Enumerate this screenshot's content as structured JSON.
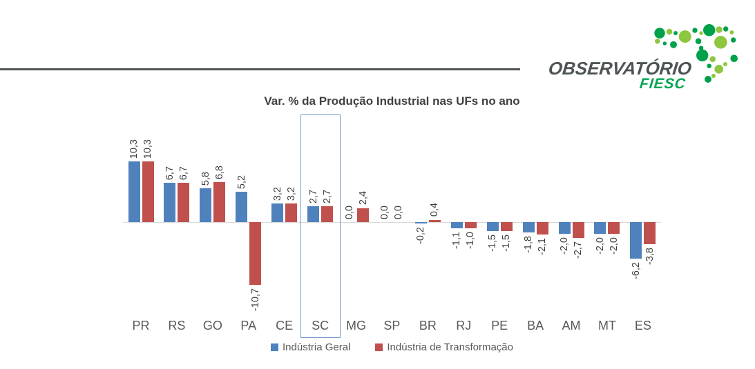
{
  "logo": {
    "primary": "OBSERVATÓRIO",
    "secondary": "FIESC",
    "primary_color": "#4d5456",
    "secondary_color": "#00a651",
    "rule_color": "#4d5456",
    "dot_color_dark": "#00a14b",
    "dot_color_light": "#8dc63f"
  },
  "chart_data": {
    "type": "bar",
    "title": "Var. % da Produção Industrial nas UFs no ano",
    "categories": [
      "PR",
      "RS",
      "GO",
      "PA",
      "CE",
      "SC",
      "MG",
      "SP",
      "BR",
      "RJ",
      "PE",
      "BA",
      "AM",
      "MT",
      "ES"
    ],
    "series": [
      {
        "name": "Indústria Geral",
        "color": "#4f81bd",
        "values": [
          10.3,
          6.7,
          5.8,
          5.2,
          3.2,
          2.7,
          0.0,
          0.0,
          -0.2,
          -1.1,
          -1.5,
          -1.8,
          -2.0,
          -2.0,
          -6.2
        ],
        "labels": [
          "10,3",
          "6,7",
          "5,8",
          "5,2",
          "3,2",
          "2,7",
          "0,0",
          "0,0",
          "-0,2",
          "-1,1",
          "-1,5",
          "-1,8",
          "-2,0",
          "-2,0",
          "-6,2"
        ]
      },
      {
        "name": "Indústria de Transformação",
        "color": "#c0504d",
        "values": [
          10.3,
          6.7,
          6.8,
          -10.7,
          3.2,
          2.7,
          2.4,
          0.0,
          0.4,
          -1.0,
          -1.5,
          -2.1,
          -2.7,
          -2.0,
          -3.8
        ],
        "labels": [
          "10,3",
          "6,7",
          "6,8",
          "-10,7",
          "3,2",
          "2,7",
          "2,4",
          "0,0",
          "0,4",
          "-1,0",
          "-1,5",
          "-2,1",
          "-2,7",
          "-2,0",
          "-3,8"
        ]
      }
    ],
    "ylim": [
      -12,
      12
    ],
    "gridlines": false,
    "legend_position": "bottom",
    "highlight_category": "SC",
    "highlight_box_color": "#7596c8",
    "title_color": "#404040",
    "value_label_color": "#404040",
    "axis_label_color": "#595959",
    "legend_text_color": "#595959",
    "baseline_color": "#d9d9d9",
    "decimal_separator": ","
  }
}
